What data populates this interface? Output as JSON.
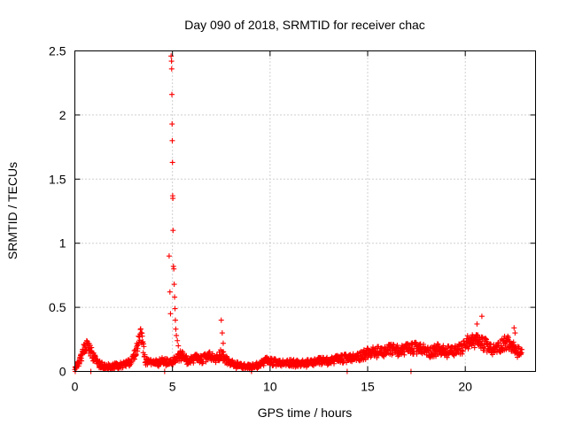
{
  "chart_data": {
    "type": "scatter",
    "title": "Day 090 of 2018, SRMTID for receiver chac",
    "xlabel": "GPS time / hours",
    "ylabel": "SRMTID / TECUs",
    "xlim": [
      0,
      23.6
    ],
    "ylim": [
      0,
      2.5
    ],
    "x_ticks": [
      0,
      5,
      10,
      15,
      20
    ],
    "x_tick_labels": [
      "0",
      "5",
      "10",
      "15",
      "20"
    ],
    "y_ticks": [
      0,
      0.5,
      1,
      1.5,
      2,
      2.5
    ],
    "y_tick_labels": [
      "0",
      "0.5",
      "1",
      "1.5",
      "2",
      "2.5"
    ],
    "grid": true,
    "marker": "plus",
    "marker_color": "#ff0000",
    "profile": [
      [
        0.0,
        0.03
      ],
      [
        0.2,
        0.06
      ],
      [
        0.35,
        0.12
      ],
      [
        0.5,
        0.19
      ],
      [
        0.6,
        0.21
      ],
      [
        0.75,
        0.18
      ],
      [
        0.9,
        0.13
      ],
      [
        1.0,
        0.1
      ],
      [
        1.2,
        0.06
      ],
      [
        1.5,
        0.04
      ],
      [
        2.0,
        0.04
      ],
      [
        2.5,
        0.05
      ],
      [
        2.8,
        0.07
      ],
      [
        3.0,
        0.11
      ],
      [
        3.2,
        0.2
      ],
      [
        3.3,
        0.3
      ],
      [
        3.45,
        0.25
      ],
      [
        3.6,
        0.08
      ],
      [
        4.0,
        0.06
      ],
      [
        4.3,
        0.07
      ],
      [
        4.6,
        0.08
      ],
      [
        4.8,
        0.06
      ],
      [
        5.5,
        0.12
      ],
      [
        5.8,
        0.08
      ],
      [
        6.2,
        0.1
      ],
      [
        6.5,
        0.09
      ],
      [
        6.9,
        0.12
      ],
      [
        7.2,
        0.09
      ],
      [
        7.5,
        0.14
      ],
      [
        7.8,
        0.08
      ],
      [
        8.2,
        0.05
      ],
      [
        8.6,
        0.04
      ],
      [
        9.0,
        0.03
      ],
      [
        9.4,
        0.05
      ],
      [
        9.8,
        0.08
      ],
      [
        10.2,
        0.07
      ],
      [
        10.6,
        0.06
      ],
      [
        11.0,
        0.07
      ],
      [
        11.4,
        0.06
      ],
      [
        11.8,
        0.06
      ],
      [
        12.2,
        0.07
      ],
      [
        12.6,
        0.08
      ],
      [
        13.0,
        0.08
      ],
      [
        13.4,
        0.09
      ],
      [
        13.8,
        0.1
      ],
      [
        14.2,
        0.1
      ],
      [
        14.6,
        0.12
      ],
      [
        15.0,
        0.14
      ],
      [
        15.4,
        0.15
      ],
      [
        15.8,
        0.15
      ],
      [
        16.2,
        0.17
      ],
      [
        16.6,
        0.16
      ],
      [
        17.0,
        0.17
      ],
      [
        17.4,
        0.18
      ],
      [
        17.8,
        0.17
      ],
      [
        18.2,
        0.15
      ],
      [
        18.6,
        0.17
      ],
      [
        19.0,
        0.15
      ],
      [
        19.4,
        0.16
      ],
      [
        19.8,
        0.17
      ],
      [
        20.2,
        0.24
      ],
      [
        20.6,
        0.23
      ],
      [
        21.0,
        0.21
      ],
      [
        21.4,
        0.16
      ],
      [
        21.8,
        0.2
      ],
      [
        22.1,
        0.23
      ],
      [
        22.4,
        0.19
      ],
      [
        22.7,
        0.15
      ],
      [
        22.9,
        0.14
      ]
    ],
    "spike_points": [
      [
        4.83,
        0.9
      ],
      [
        4.87,
        0.62
      ],
      [
        4.9,
        0.45
      ],
      [
        4.93,
        2.46
      ],
      [
        4.95,
        2.42
      ],
      [
        4.96,
        2.36
      ],
      [
        4.97,
        2.16
      ],
      [
        4.98,
        1.93
      ],
      [
        4.99,
        1.8
      ],
      [
        5.0,
        1.63
      ],
      [
        5.01,
        1.37
      ],
      [
        5.02,
        1.35
      ],
      [
        5.03,
        1.1
      ],
      [
        5.05,
        0.82
      ],
      [
        5.07,
        0.8
      ],
      [
        5.09,
        0.68
      ],
      [
        5.11,
        0.58
      ],
      [
        5.13,
        0.49
      ],
      [
        5.15,
        0.4
      ],
      [
        5.17,
        0.33
      ],
      [
        5.2,
        0.28
      ],
      [
        5.25,
        0.24
      ],
      [
        5.3,
        0.2
      ],
      [
        5.4,
        0.16
      ],
      [
        7.5,
        0.4
      ],
      [
        7.55,
        0.3
      ],
      [
        7.6,
        0.22
      ],
      [
        17.22,
        0.0
      ],
      [
        20.85,
        0.43
      ],
      [
        20.6,
        0.37
      ],
      [
        22.5,
        0.34
      ],
      [
        22.55,
        0.3
      ],
      [
        0.82,
        0.0
      ],
      [
        0.02,
        0.0
      ],
      [
        9.05,
        0.0
      ],
      [
        13.95,
        0.0
      ],
      [
        4.6,
        0.0
      ]
    ]
  }
}
